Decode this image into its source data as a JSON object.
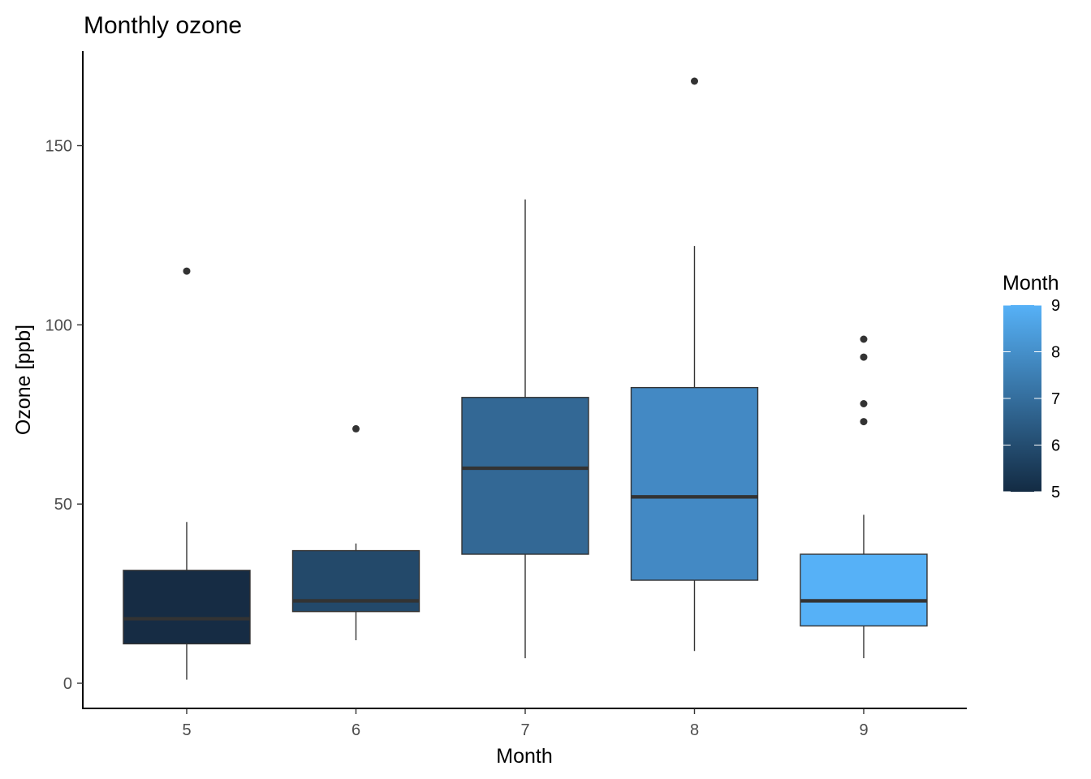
{
  "chart_data": {
    "type": "boxplot",
    "title": "Monthly ozone",
    "xlabel": "Month",
    "ylabel": "Ozone [ppb]",
    "categories": [
      "5",
      "6",
      "7",
      "8",
      "9"
    ],
    "y_ticks": [
      0,
      50,
      100,
      150
    ],
    "y_tick_labels": [
      "0",
      "50",
      "100",
      "150"
    ],
    "ylim": [
      -7,
      176
    ],
    "grid": false,
    "legend": {
      "title": "Month",
      "placement": "right",
      "type": "colorbar",
      "min": 5,
      "max": 9,
      "labels": [
        "9",
        "8",
        "7",
        "6",
        "5"
      ],
      "label_values": [
        9,
        8,
        7,
        6,
        5
      ],
      "low_color": "#132b43",
      "high_color": "#56b1f7"
    },
    "boxes": [
      {
        "category": "5",
        "whisker_low": 1,
        "q1": 11,
        "median": 18,
        "q3": 31.5,
        "whisker_high": 45,
        "outliers": [
          115
        ],
        "fill": "#162c44"
      },
      {
        "category": "6",
        "whisker_low": 12,
        "q1": 20,
        "median": 23,
        "q3": 37,
        "whisker_high": 39,
        "outliers": [
          71
        ],
        "fill": "#23496a"
      },
      {
        "category": "7",
        "whisker_low": 7,
        "q1": 36,
        "median": 60,
        "q3": 79.75,
        "whisker_high": 135,
        "outliers": [],
        "fill": "#336895"
      },
      {
        "category": "8",
        "whisker_low": 9,
        "q1": 28.75,
        "median": 52,
        "q3": 82.5,
        "whisker_high": 122,
        "outliers": [
          168
        ],
        "fill": "#4389c4"
      },
      {
        "category": "9",
        "whisker_low": 7,
        "q1": 16,
        "median": 23,
        "q3": 36,
        "whisker_high": 47,
        "outliers": [
          73,
          78,
          91,
          96
        ],
        "fill": "#56b1f7"
      }
    ]
  }
}
